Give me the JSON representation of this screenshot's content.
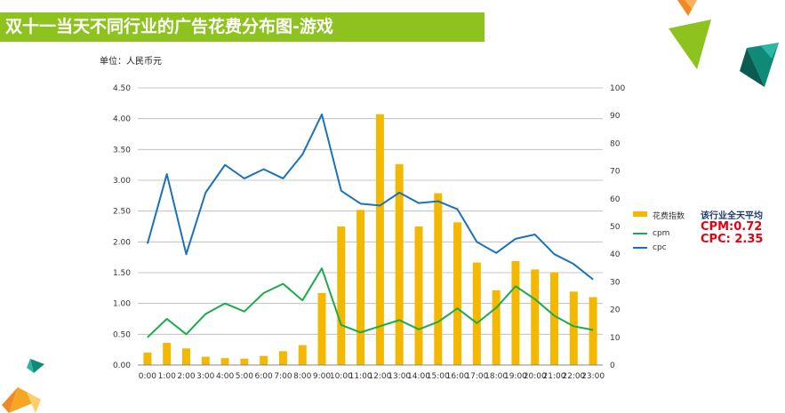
{
  "page": {
    "title": "双十一当天不同行业的广告花费分布图-游戏",
    "unit": "单位：人民币元"
  },
  "average": {
    "title": "该行业全天平均",
    "cpm": "CPM:0.72",
    "cpc": "CPC: 2.35"
  },
  "chart_data": {
    "type": "bar",
    "categories": [
      "0:00",
      "1:00",
      "2:00",
      "3:00",
      "4:00",
      "5:00",
      "6:00",
      "7:00",
      "8:00",
      "9:00",
      "10:00",
      "11:00",
      "12:00",
      "13:00",
      "14:00",
      "15:00",
      "16:00",
      "17:00",
      "18:00",
      "19:00",
      "20:00",
      "21:00",
      "22:00",
      "23:00"
    ],
    "category_labels": [
      "0:00",
      "1:00",
      "2:00",
      "3:00",
      "4:00",
      "5:00",
      "6:00",
      "7:00",
      "8:00",
      "9:00",
      "10:00",
      "11:00",
      "12:00",
      "13:00",
      "14:00",
      "15:00",
      "16:00",
      "17:00",
      "18:00",
      "19:00",
      "20:00",
      "21:00",
      "22:00",
      "23:00"
    ],
    "left_ticks": [
      "0.00",
      "0.50",
      "1.00",
      "1.50",
      "2.00",
      "2.50",
      "3.00",
      "3.50",
      "4.00",
      "4.50"
    ],
    "right_ticks": [
      "0",
      "10",
      "20",
      "30",
      "40",
      "50",
      "60",
      "70",
      "80",
      "90",
      "100"
    ],
    "ylim_left": [
      0,
      4.5
    ],
    "ylim_right": [
      0,
      100
    ],
    "grid": true,
    "series": [
      {
        "name": "花费指数",
        "kind": "bar",
        "axis": "right",
        "color": "#f5b800",
        "values": [
          4.5,
          8,
          6,
          3,
          2.5,
          2.3,
          3.3,
          5,
          7.2,
          26,
          50,
          56,
          90.5,
          72.5,
          50,
          62,
          51.5,
          37,
          27,
          37.5,
          34.5,
          33.5,
          26.5,
          24.5
        ]
      },
      {
        "name": "cpm",
        "kind": "line",
        "axis": "left",
        "color": "#1daa4a",
        "values": [
          0.45,
          0.75,
          0.5,
          0.83,
          1.0,
          0.87,
          1.17,
          1.32,
          1.05,
          1.57,
          0.65,
          0.53,
          0.63,
          0.73,
          0.58,
          0.7,
          0.92,
          0.68,
          0.93,
          1.28,
          1.07,
          0.8,
          0.63,
          0.57
        ]
      },
      {
        "name": "cpc",
        "kind": "line",
        "axis": "left",
        "color": "#1a72b8",
        "values": [
          1.97,
          3.1,
          1.8,
          2.8,
          3.25,
          3.03,
          3.18,
          3.03,
          3.42,
          4.07,
          2.83,
          2.62,
          2.59,
          2.8,
          2.63,
          2.66,
          2.53,
          2.0,
          1.82,
          2.05,
          2.12,
          1.8,
          1.64,
          1.39
        ]
      }
    ]
  }
}
